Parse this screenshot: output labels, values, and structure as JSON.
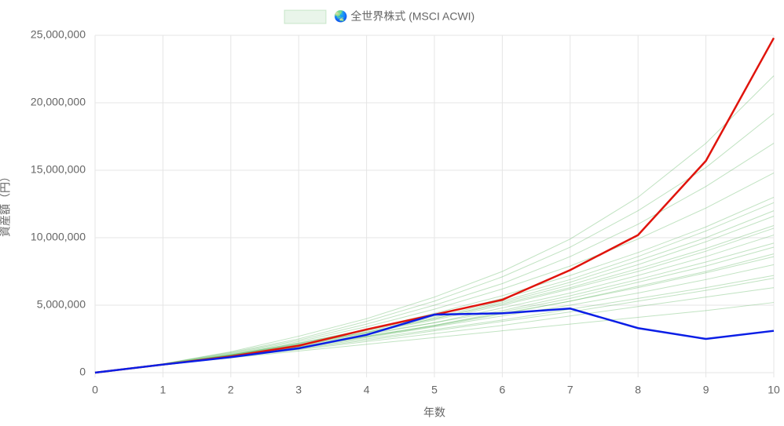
{
  "chart_data": {
    "type": "line",
    "x_label": "年数",
    "y_label": "資産額（円）",
    "x": [
      0,
      1,
      2,
      3,
      4,
      5,
      6,
      7,
      8,
      9,
      10
    ],
    "xlim": [
      0,
      10
    ],
    "xticks": [
      0,
      1,
      2,
      3,
      4,
      5,
      6,
      7,
      8,
      9,
      10
    ],
    "ylim": [
      0,
      25000000
    ],
    "yticks": [
      0,
      {
        "value": 5000000,
        "label": "5,000,000"
      },
      {
        "value": 10000000,
        "label": "10,000,000"
      },
      {
        "value": 15000000,
        "label": "15,000,000"
      },
      {
        "value": 20000000,
        "label": "20,000,000"
      },
      {
        "value": 25000000,
        "label": "25,000,000"
      }
    ],
    "grid": true,
    "series": [
      {
        "name": "🌏 全世界株式 (MSCI ACWI)",
        "color": "rgba(76,175,80,0.35)",
        "values": [
          0,
          600000,
          1250000,
          1900000,
          2700000,
          3500000,
          4400000,
          5300000,
          6400000,
          7500000,
          8800000
        ]
      },
      {
        "color": "rgba(76,175,80,0.35)",
        "values": [
          0,
          610000,
          1300000,
          2100000,
          3000000,
          4000000,
          5100000,
          6300000,
          7700000,
          9200000,
          10900000
        ]
      },
      {
        "color": "rgba(76,175,80,0.35)",
        "values": [
          0,
          590000,
          1200000,
          1800000,
          2500000,
          3200000,
          3900000,
          4700000,
          5500000,
          6300000,
          7200000
        ]
      },
      {
        "color": "rgba(76,175,80,0.35)",
        "values": [
          0,
          620000,
          1350000,
          2200000,
          3200000,
          4400000,
          5700000,
          7200000,
          8900000,
          10800000,
          13000000
        ]
      },
      {
        "color": "rgba(76,175,80,0.35)",
        "values": [
          0,
          600000,
          1280000,
          2000000,
          2900000,
          3700000,
          4800000,
          5900000,
          7200000,
          8600000,
          10200000
        ]
      },
      {
        "color": "rgba(76,175,80,0.35)",
        "values": [
          0,
          580000,
          1150000,
          1700000,
          2300000,
          2900000,
          3500000,
          4200000,
          4900000,
          5600000,
          6300000
        ]
      },
      {
        "color": "rgba(76,175,80,0.35)",
        "values": [
          0,
          630000,
          1400000,
          2300000,
          3400000,
          4700000,
          6200000,
          7900000,
          9900000,
          12200000,
          14800000
        ]
      },
      {
        "color": "rgba(76,175,80,0.35)",
        "values": [
          0,
          600000,
          1260000,
          2000000,
          2800000,
          3700000,
          4600000,
          5700000,
          6900000,
          8200000,
          9600000
        ]
      },
      {
        "color": "rgba(76,175,80,0.35)",
        "values": [
          0,
          610000,
          1320000,
          2150000,
          3100000,
          4100000,
          5300000,
          6700000,
          8300000,
          10000000,
          12000000
        ]
      },
      {
        "color": "rgba(76,175,80,0.35)",
        "values": [
          0,
          590000,
          1220000,
          1850000,
          2600000,
          3400000,
          4200000,
          5000000,
          5900000,
          6900000,
          8000000
        ]
      },
      {
        "color": "rgba(76,175,80,0.35)",
        "values": [
          0,
          640000,
          1450000,
          2400000,
          3600000,
          5000000,
          6600000,
          8600000,
          11000000,
          13800000,
          17000000
        ]
      },
      {
        "color": "rgba(76,175,80,0.35)",
        "values": [
          0,
          600000,
          1240000,
          1950000,
          2700000,
          3500000,
          4500000,
          5500000,
          6700000,
          7900000,
          9300000
        ]
      },
      {
        "color": "rgba(76,175,80,0.35)",
        "values": [
          0,
          570000,
          1100000,
          1600000,
          2100000,
          2600000,
          3100000,
          3600000,
          4100000,
          4600000,
          5200000
        ]
      },
      {
        "color": "rgba(76,175,80,0.35)",
        "values": [
          0,
          620000,
          1330000,
          2180000,
          3150000,
          4200000,
          5500000,
          6900000,
          8600000,
          10500000,
          12600000
        ]
      },
      {
        "color": "rgba(76,175,80,0.35)",
        "values": [
          0,
          650000,
          1500000,
          2500000,
          3800000,
          5300000,
          7100000,
          9300000,
          12000000,
          15200000,
          19200000
        ]
      },
      {
        "color": "rgba(76,175,80,0.35)",
        "values": [
          0,
          600000,
          1270000,
          2050000,
          2950000,
          3900000,
          5000000,
          6200000,
          7500000,
          9000000,
          10700000
        ]
      },
      {
        "color": "rgba(76,175,80,0.35)",
        "values": [
          0,
          590000,
          1230000,
          1900000,
          2650000,
          3450000,
          4350000,
          5300000,
          6300000,
          7400000,
          8600000
        ]
      },
      {
        "color": "rgba(76,175,80,0.35)",
        "values": [
          0,
          610000,
          1300000,
          2080000,
          3000000,
          4000000,
          5200000,
          6500000,
          8000000,
          9700000,
          11600000
        ]
      },
      {
        "color": "rgba(76,175,80,0.35)",
        "values": [
          0,
          660000,
          1550000,
          2700000,
          4000000,
          5600000,
          7500000,
          9900000,
          13000000,
          17000000,
          22000000
        ]
      },
      {
        "color": "rgba(76,175,80,0.35)",
        "values": [
          0,
          580000,
          1180000,
          1750000,
          2400000,
          3100000,
          3800000,
          4500000,
          5300000,
          6100000,
          7000000
        ]
      },
      {
        "color": "#e0140c",
        "values": [
          0,
          600000,
          1200000,
          2000000,
          3200000,
          4300000,
          5400000,
          7600000,
          10200000,
          15700000,
          24800000
        ]
      },
      {
        "color": "#0a1ee6",
        "values": [
          0,
          600000,
          1150000,
          1800000,
          2800000,
          4300000,
          4400000,
          4750000,
          3300000,
          2500000,
          3100000
        ]
      }
    ]
  }
}
